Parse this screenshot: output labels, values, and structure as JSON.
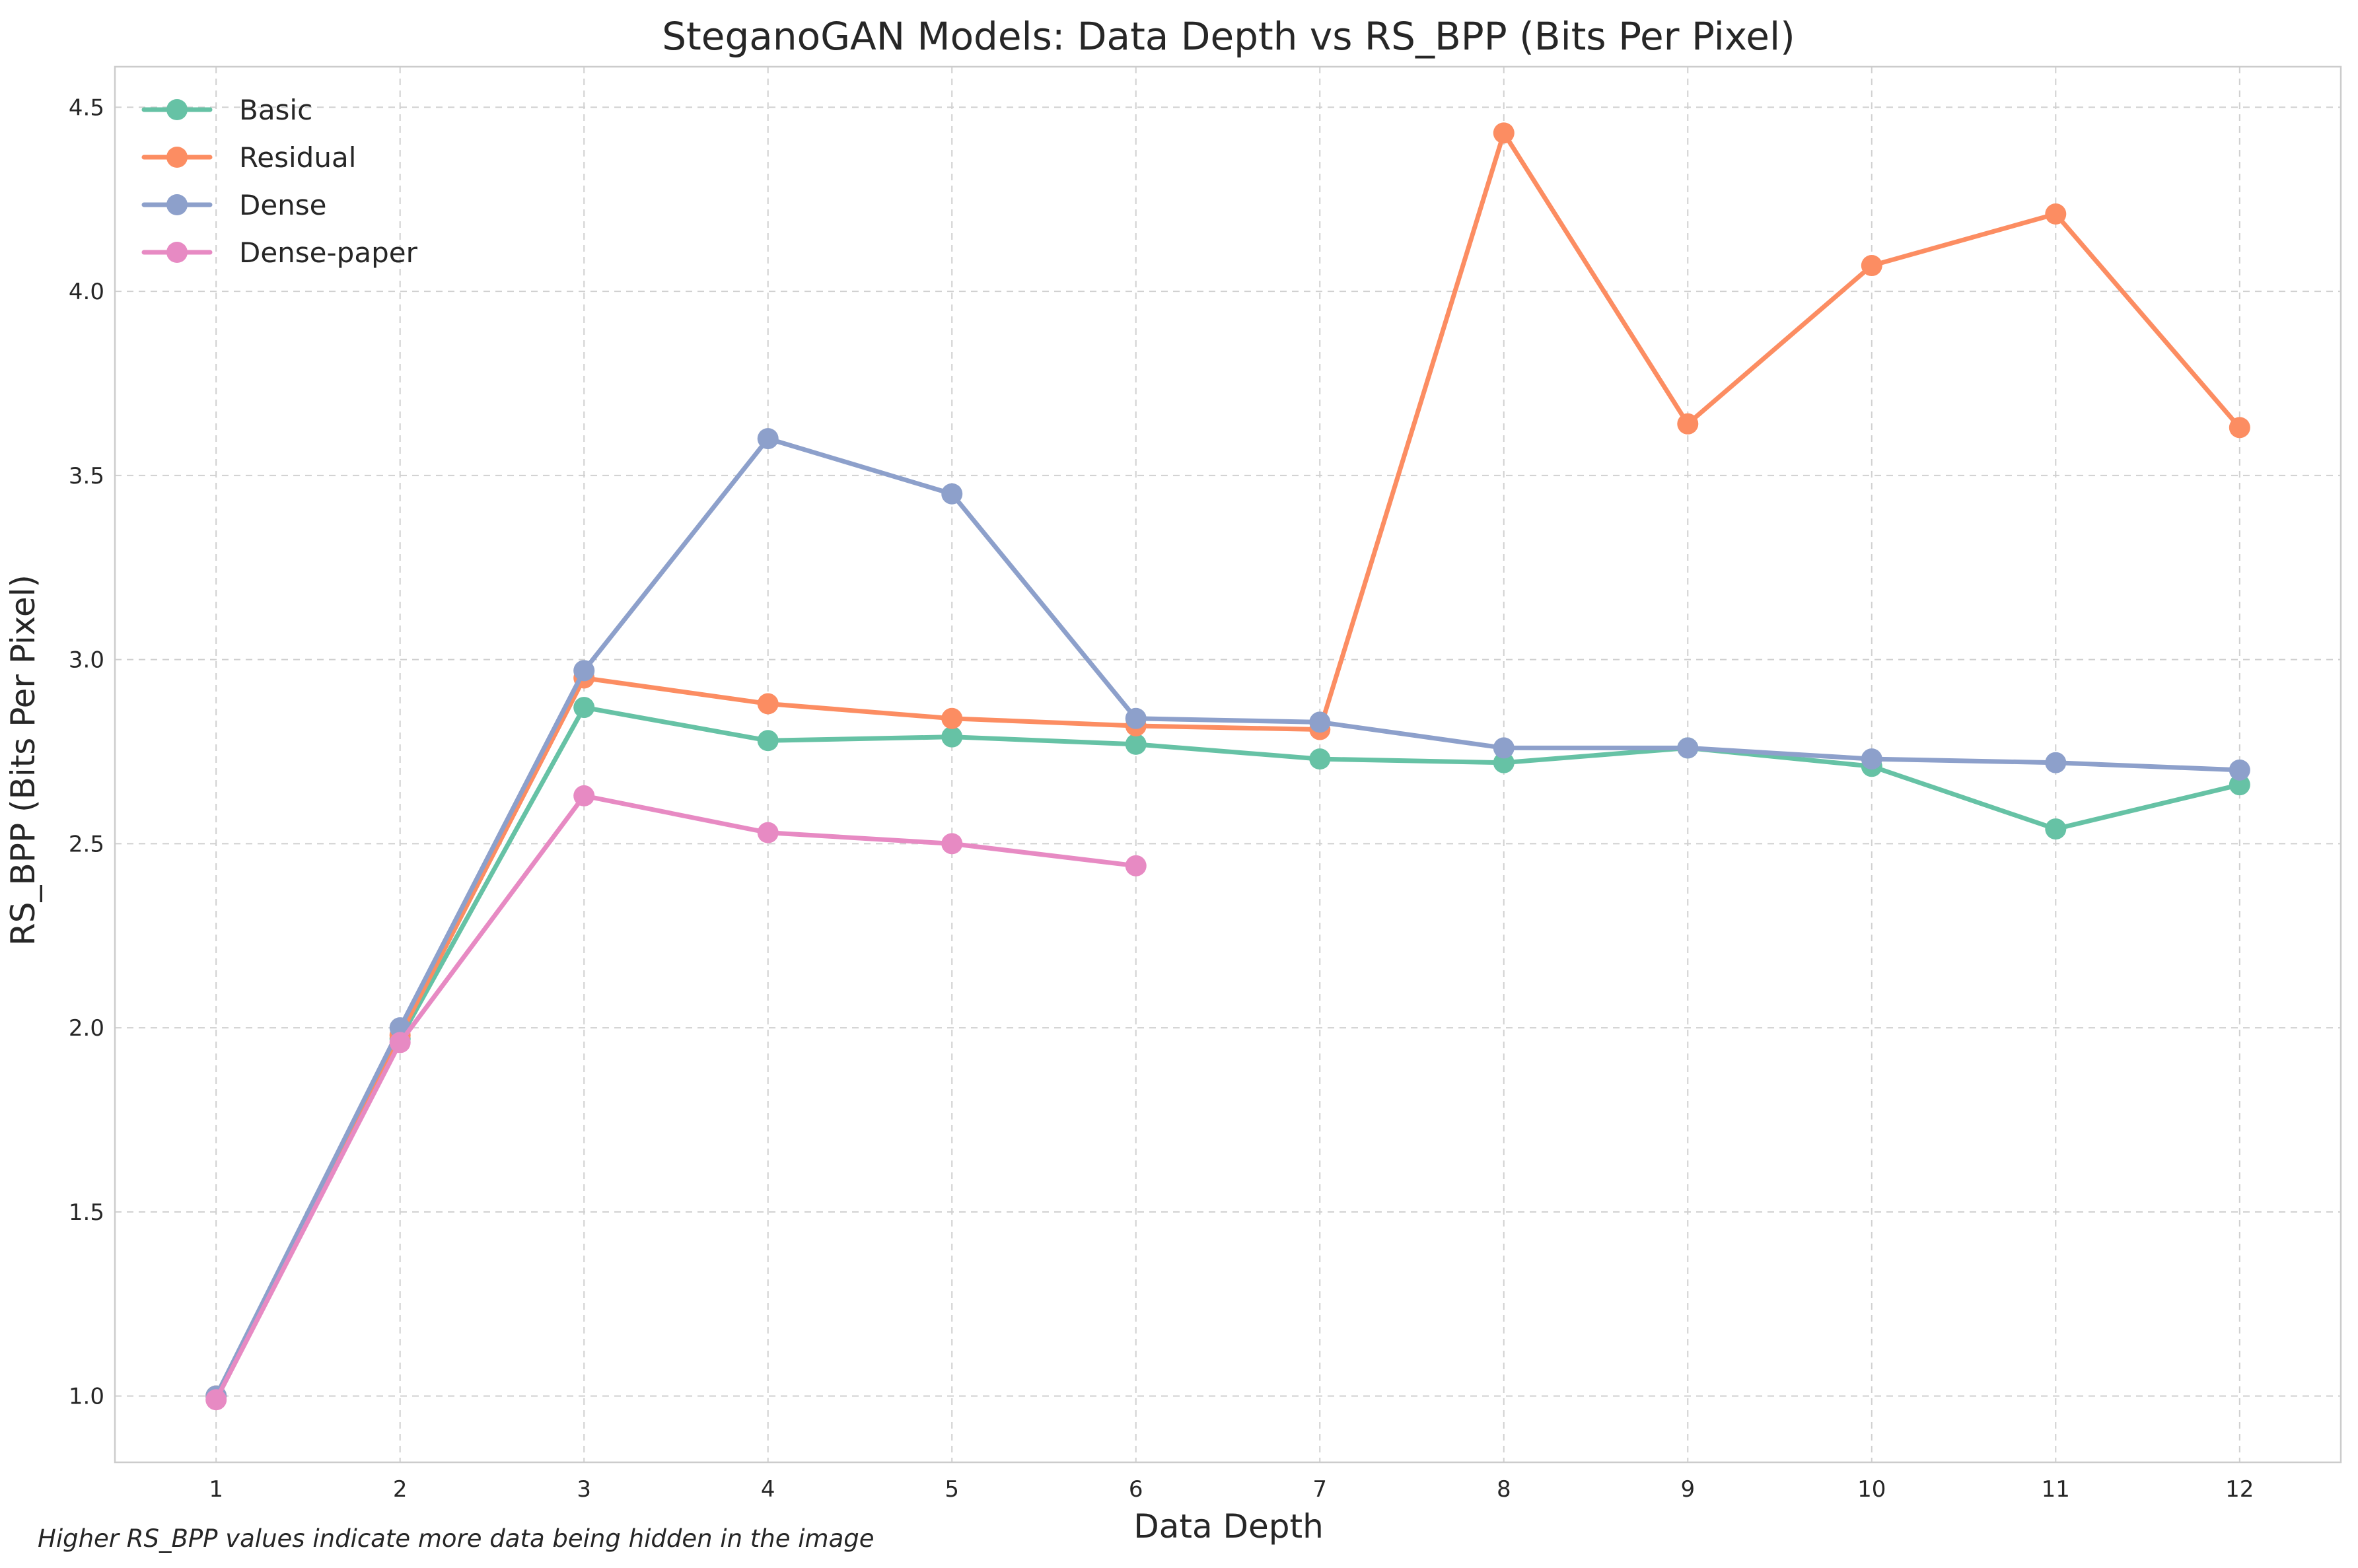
{
  "chart_data": {
    "type": "line",
    "title": "SteganoGAN Models: Data Depth vs RS_BPP (Bits Per Pixel)",
    "xlabel": "Data Depth",
    "ylabel": "RS_BPP (Bits Per Pixel)",
    "x": [
      1,
      2,
      3,
      4,
      5,
      6,
      7,
      8,
      9,
      10,
      11,
      12
    ],
    "xlim": [
      0.45,
      12.55
    ],
    "ylim": [
      0.82,
      4.61
    ],
    "yticks": [
      1.0,
      1.5,
      2.0,
      2.5,
      3.0,
      3.5,
      4.0,
      4.5
    ],
    "grid": true,
    "legend_position": "top-left",
    "series": [
      {
        "name": "Basic",
        "color": "#66c2a5",
        "x": [
          1,
          2,
          3,
          4,
          5,
          6,
          7,
          8,
          9,
          10,
          11,
          12
        ],
        "values": [
          1.0,
          1.97,
          2.87,
          2.78,
          2.79,
          2.77,
          2.73,
          2.72,
          2.76,
          2.71,
          2.54,
          2.66
        ]
      },
      {
        "name": "Residual",
        "color": "#fc8d62",
        "x": [
          1,
          2,
          3,
          4,
          5,
          6,
          7,
          8,
          9,
          10,
          11,
          12
        ],
        "values": [
          1.0,
          1.98,
          2.95,
          2.88,
          2.84,
          2.82,
          2.81,
          4.43,
          3.64,
          4.07,
          4.21,
          3.63
        ]
      },
      {
        "name": "Dense",
        "color": "#8da0cb",
        "x": [
          1,
          2,
          3,
          4,
          5,
          6,
          7,
          8,
          9,
          10,
          11,
          12
        ],
        "values": [
          1.0,
          2.0,
          2.97,
          3.6,
          3.45,
          2.84,
          2.83,
          2.76,
          2.76,
          2.73,
          2.72,
          2.7
        ]
      },
      {
        "name": "Dense-paper",
        "color": "#e78ac3",
        "x": [
          1,
          2,
          3,
          4,
          5,
          6
        ],
        "values": [
          0.99,
          1.96,
          2.63,
          2.53,
          2.5,
          2.44
        ]
      }
    ],
    "annotation": "Higher RS_BPP values indicate more data being hidden in the image"
  }
}
